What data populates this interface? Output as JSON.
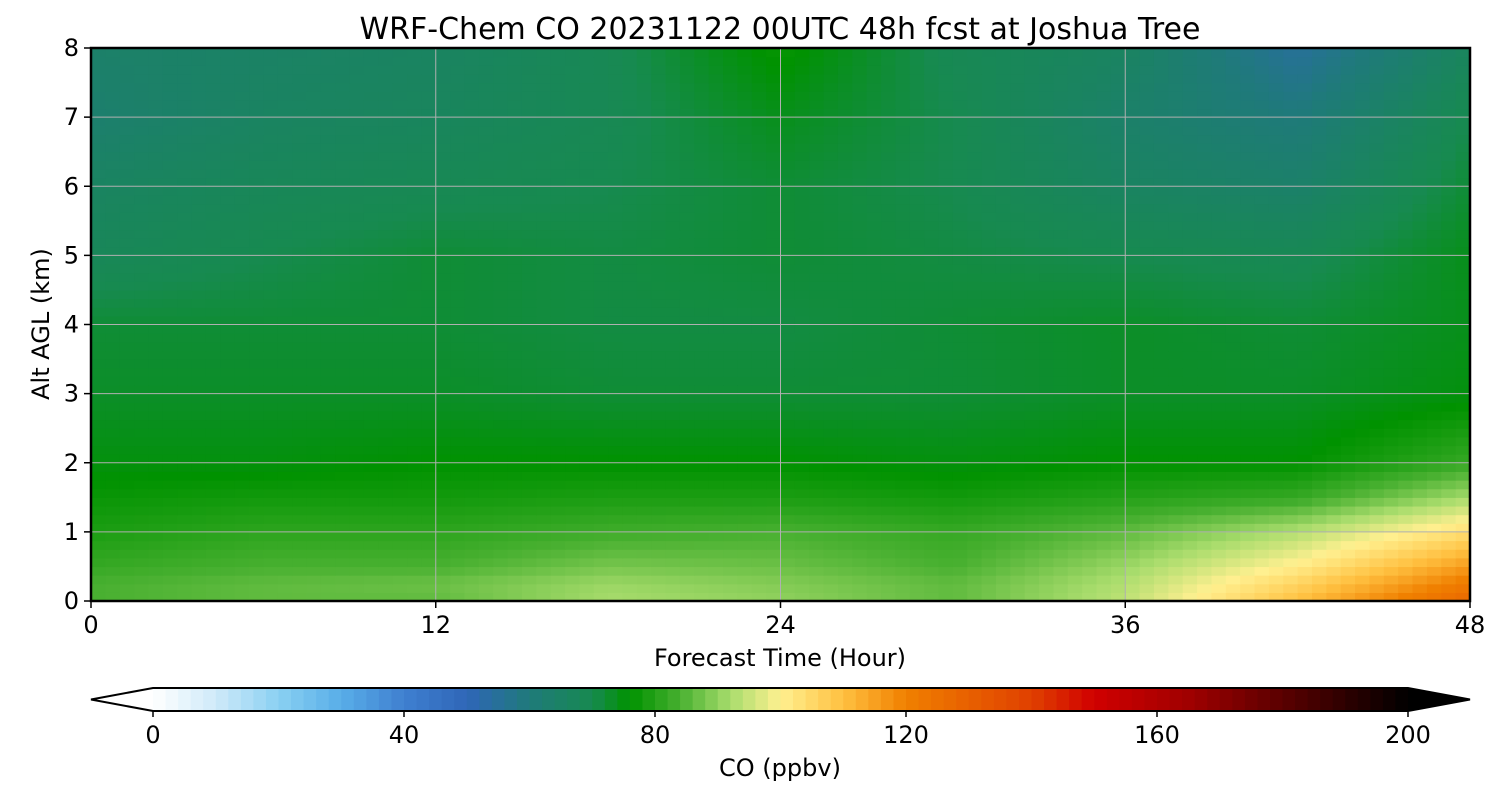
{
  "chart_data": {
    "type": "heatmap",
    "title": "WRF-Chem CO  20231122 00UTC 48h fcst at Joshua Tree",
    "xlabel": "Forecast Time (Hour)",
    "ylabel": "Alt AGL (km)",
    "xlim": [
      0,
      48
    ],
    "ylim": [
      0,
      8
    ],
    "x_ticks": [
      "0",
      "12",
      "24",
      "36",
      "48"
    ],
    "y_ticks": [
      "0",
      "1",
      "2",
      "3",
      "4",
      "5",
      "6",
      "7",
      "8"
    ],
    "grid": true,
    "x": [
      0,
      6,
      12,
      18,
      24,
      30,
      36,
      42,
      48
    ],
    "y": [
      0,
      0.25,
      0.5,
      1,
      1.5,
      2,
      3,
      4,
      5,
      6,
      7,
      8
    ],
    "z": [
      [
        84,
        86,
        86,
        92,
        90,
        86,
        94,
        110,
        128
      ],
      [
        84,
        86,
        87,
        91,
        89,
        86,
        93,
        106,
        122
      ],
      [
        82,
        84,
        84,
        88,
        87,
        84,
        91,
        101,
        116
      ],
      [
        79,
        81,
        81,
        83,
        84,
        82,
        86,
        93,
        104
      ],
      [
        77,
        78,
        78,
        79,
        79,
        78,
        80,
        82,
        92
      ],
      [
        75,
        75,
        76,
        76,
        76,
        75,
        76,
        76,
        82
      ],
      [
        73,
        73,
        73,
        72,
        72,
        72,
        73,
        73,
        75
      ],
      [
        72,
        72,
        72,
        71,
        71,
        72,
        73,
        72,
        74
      ],
      [
        68,
        70,
        72,
        71,
        72,
        71,
        70,
        69,
        74
      ],
      [
        66,
        68,
        69,
        70,
        72,
        70,
        66,
        64,
        72
      ],
      [
        63,
        66,
        67,
        69,
        74,
        70,
        64,
        60,
        70
      ],
      [
        64,
        65,
        66,
        69,
        77,
        69,
        66,
        55,
        67
      ]
    ],
    "colorbar": {
      "label": "CO  (ppbv)",
      "min": 0,
      "max": 200,
      "ticks": [
        "0",
        "40",
        "80",
        "120",
        "160",
        "200"
      ],
      "extend": "both"
    },
    "colormap": [
      [
        0,
        "#ffffff"
      ],
      [
        10,
        "#cfeaf9"
      ],
      [
        20,
        "#8ad0f2"
      ],
      [
        30,
        "#58aee8"
      ],
      [
        40,
        "#3f7fd0"
      ],
      [
        50,
        "#2f66b8"
      ],
      [
        60,
        "#1f7a7a"
      ],
      [
        70,
        "#178a50"
      ],
      [
        76,
        "#009200"
      ],
      [
        84,
        "#48b030"
      ],
      [
        92,
        "#a8dc6c"
      ],
      [
        100,
        "#fff090"
      ],
      [
        110,
        "#ffc040"
      ],
      [
        120,
        "#f08000"
      ],
      [
        140,
        "#e04000"
      ],
      [
        150,
        "#d00000"
      ],
      [
        165,
        "#a00000"
      ],
      [
        180,
        "#5a0000"
      ],
      [
        200,
        "#000000"
      ]
    ]
  }
}
